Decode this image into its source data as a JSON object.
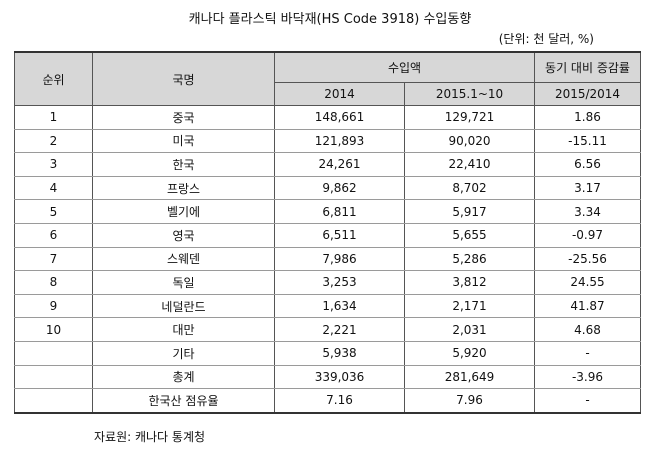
{
  "title": "캐나다 플라스틱 바닥재(HS Code 3918) 수입동향",
  "unit_note": "(단위: 천 달러, %)",
  "headers": {
    "rank": "순위",
    "country": "국명",
    "import_amount": "수입액",
    "yoy": "동기 대비 증감률",
    "y2014": "2014",
    "y2015": "2015.1~10",
    "yoy_period": "2015/2014"
  },
  "rows": [
    {
      "rank": "1",
      "country": "중국",
      "v2014": "148,661",
      "v2015": "129,721",
      "yoy": "1.86"
    },
    {
      "rank": "2",
      "country": "미국",
      "v2014": "121,893",
      "v2015": "90,020",
      "yoy": "-15.11"
    },
    {
      "rank": "3",
      "country": "한국",
      "v2014": "24,261",
      "v2015": "22,410",
      "yoy": "6.56"
    },
    {
      "rank": "4",
      "country": "프랑스",
      "v2014": "9,862",
      "v2015": "8,702",
      "yoy": "3.17"
    },
    {
      "rank": "5",
      "country": "벨기에",
      "v2014": "6,811",
      "v2015": "5,917",
      "yoy": "3.34"
    },
    {
      "rank": "6",
      "country": "영국",
      "v2014": "6,511",
      "v2015": "5,655",
      "yoy": "-0.97"
    },
    {
      "rank": "7",
      "country": "스웨덴",
      "v2014": "7,986",
      "v2015": "5,286",
      "yoy": "-25.56"
    },
    {
      "rank": "8",
      "country": "독일",
      "v2014": "3,253",
      "v2015": "3,812",
      "yoy": "24.55"
    },
    {
      "rank": "9",
      "country": "네덜란드",
      "v2014": "1,634",
      "v2015": "2,171",
      "yoy": "41.87"
    },
    {
      "rank": "10",
      "country": "대만",
      "v2014": "2,221",
      "v2015": "2,031",
      "yoy": "4.68"
    },
    {
      "rank": "",
      "country": "기타",
      "v2014": "5,938",
      "v2015": "5,920",
      "yoy": "-"
    },
    {
      "rank": "",
      "country": "총계",
      "v2014": "339,036",
      "v2015": "281,649",
      "yoy": "-3.96"
    },
    {
      "rank": "",
      "country": "한국산 점유율",
      "v2014": "7.16",
      "v2015": "7.96",
      "yoy": "-"
    }
  ],
  "source": "자료원: 캐나다 통계청"
}
